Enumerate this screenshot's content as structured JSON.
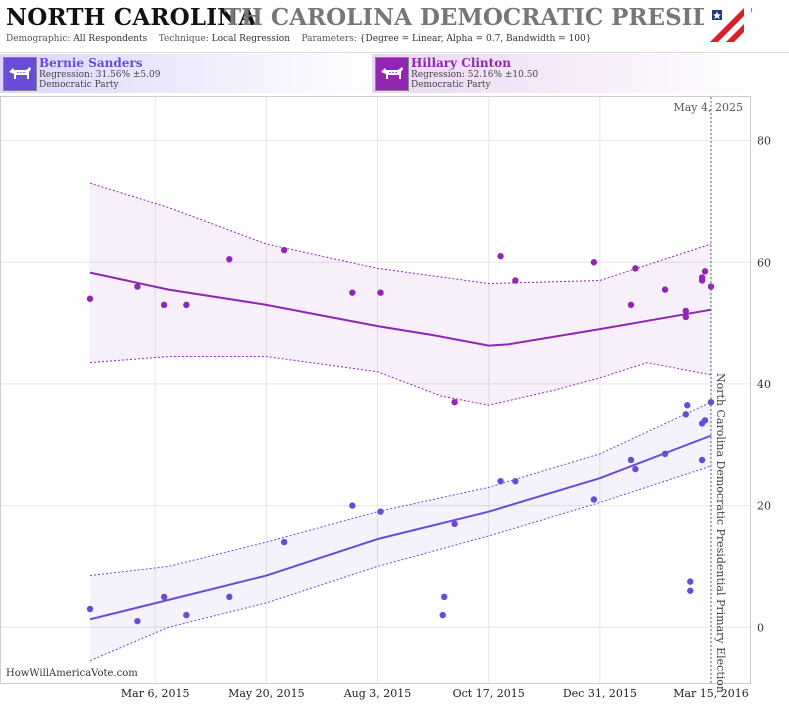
{
  "header": {
    "state": "NORTH CAROLINA",
    "race": "TH CAROLINA DEMOCRATIC PRESIDENTIAL P",
    "demographic_label": "Demographic:",
    "demographic_value": "All Respondents",
    "technique_label": "Technique:",
    "technique_value": "Local Regression",
    "parameters_label": "Parameters:",
    "parameters_value": "{Degree = Linear, Alpha = 0.7, Bandwidth = 100}",
    "logo_icon": "flag-logo-icon"
  },
  "candidates": [
    {
      "name": "Bernie Sanders",
      "regression": "Regression: 31.56% ±5.09",
      "party": "Democratic Party",
      "color": "#6a4bd8",
      "icon": "donkey-icon"
    },
    {
      "name": "Hillary Clinton",
      "regression": "Regression: 52.16% ±10.50",
      "party": "Democratic Party",
      "color": "#9126b3",
      "icon": "donkey-icon"
    }
  ],
  "watermark": "HowWillAmericaVote.com",
  "chart_data": {
    "type": "scatter",
    "date_label": "May 4, 2025",
    "election_label": "North Carolina Democratic Presidential Primary Election",
    "x_tick_labels": [
      "Mar 6, 2015",
      "May 20, 2015",
      "Aug 3, 2015",
      "Oct 17, 2015",
      "Dec 31, 2015",
      "Mar 15, 2016"
    ],
    "x_tick_dates": [
      "2015-03-06",
      "2015-05-20",
      "2015-08-03",
      "2015-10-17",
      "2015-12-31",
      "2016-03-15"
    ],
    "xlim": [
      "2015-01-21",
      "2016-03-15"
    ],
    "y_ticks": [
      0,
      20,
      40,
      60,
      80
    ],
    "ylim": [
      -9,
      87
    ],
    "grid": true,
    "series": [
      {
        "name": "Bernie Sanders",
        "color": "#6a4bd8",
        "points": [
          [
            "2015-01-21",
            3
          ],
          [
            "2015-02-22",
            1
          ],
          [
            "2015-03-12",
            5
          ],
          [
            "2015-03-27",
            2
          ],
          [
            "2015-04-25",
            5
          ],
          [
            "2015-06-01",
            14
          ],
          [
            "2015-07-17",
            20
          ],
          [
            "2015-08-05",
            19
          ],
          [
            "2015-09-16",
            2
          ],
          [
            "2015-09-17",
            5
          ],
          [
            "2015-09-24",
            17
          ],
          [
            "2015-10-25",
            24
          ],
          [
            "2015-11-04",
            24
          ],
          [
            "2015-12-27",
            21
          ],
          [
            "2016-01-21",
            27.5
          ],
          [
            "2016-01-24",
            26
          ],
          [
            "2016-02-13",
            28.5
          ],
          [
            "2016-02-27",
            35
          ],
          [
            "2016-02-28",
            36.5
          ],
          [
            "2016-03-01",
            6
          ],
          [
            "2016-03-01",
            7.5
          ],
          [
            "2016-03-09",
            27.5
          ],
          [
            "2016-03-09",
            33.5
          ],
          [
            "2016-03-11",
            34
          ],
          [
            "2016-03-15",
            37
          ]
        ],
        "regression": [
          [
            "2015-01-21",
            1.3
          ],
          [
            "2015-03-15",
            4.5
          ],
          [
            "2015-05-20",
            8.5
          ],
          [
            "2015-08-03",
            14.5
          ],
          [
            "2015-10-17",
            19
          ],
          [
            "2015-12-31",
            24.5
          ],
          [
            "2016-03-15",
            31.5
          ]
        ],
        "upper": [
          [
            "2015-01-21",
            8.5
          ],
          [
            "2015-03-15",
            10
          ],
          [
            "2015-05-20",
            14
          ],
          [
            "2015-08-03",
            19
          ],
          [
            "2015-10-17",
            23
          ],
          [
            "2015-12-31",
            28.5
          ],
          [
            "2016-03-15",
            37
          ]
        ],
        "lower": [
          [
            "2015-01-21",
            -5.5
          ],
          [
            "2015-03-15",
            0
          ],
          [
            "2015-05-20",
            4
          ],
          [
            "2015-08-03",
            10
          ],
          [
            "2015-10-17",
            15
          ],
          [
            "2015-12-31",
            20.5
          ],
          [
            "2016-03-15",
            26.5
          ]
        ]
      },
      {
        "name": "Hillary Clinton",
        "color": "#9126b3",
        "points": [
          [
            "2015-01-21",
            54
          ],
          [
            "2015-02-22",
            56
          ],
          [
            "2015-03-12",
            53
          ],
          [
            "2015-03-27",
            53
          ],
          [
            "2015-04-25",
            60.5
          ],
          [
            "2015-06-01",
            62
          ],
          [
            "2015-07-17",
            55
          ],
          [
            "2015-08-05",
            55
          ],
          [
            "2015-09-24",
            37
          ],
          [
            "2015-10-25",
            61
          ],
          [
            "2015-11-04",
            57
          ],
          [
            "2015-12-27",
            60
          ],
          [
            "2016-01-21",
            53
          ],
          [
            "2016-01-24",
            59
          ],
          [
            "2016-02-13",
            55.5
          ],
          [
            "2016-02-27",
            51
          ],
          [
            "2016-02-27",
            52
          ],
          [
            "2016-03-09",
            57
          ],
          [
            "2016-03-09",
            57.5
          ],
          [
            "2016-03-11",
            58.5
          ],
          [
            "2016-03-15",
            56
          ]
        ],
        "regression": [
          [
            "2015-01-21",
            58.3
          ],
          [
            "2015-03-15",
            55.5
          ],
          [
            "2015-05-20",
            53
          ],
          [
            "2015-08-03",
            49.5
          ],
          [
            "2015-09-10",
            48
          ],
          [
            "2015-10-17",
            46.3
          ],
          [
            "2015-10-30",
            46.5
          ],
          [
            "2015-12-31",
            49
          ],
          [
            "2016-03-15",
            52.2
          ]
        ],
        "upper": [
          [
            "2015-01-21",
            73
          ],
          [
            "2015-03-15",
            69
          ],
          [
            "2015-05-20",
            63
          ],
          [
            "2015-08-03",
            59
          ],
          [
            "2015-10-17",
            56.5
          ],
          [
            "2015-12-31",
            57
          ],
          [
            "2016-03-15",
            63
          ]
        ],
        "lower": [
          [
            "2015-01-21",
            43.5
          ],
          [
            "2015-03-15",
            44.5
          ],
          [
            "2015-05-20",
            44.5
          ],
          [
            "2015-08-03",
            42
          ],
          [
            "2015-09-15",
            38
          ],
          [
            "2015-10-17",
            36.5
          ],
          [
            "2015-12-01",
            39
          ],
          [
            "2015-12-31",
            41
          ],
          [
            "2016-02-01",
            43.5
          ],
          [
            "2016-03-15",
            41.5
          ]
        ]
      }
    ]
  }
}
